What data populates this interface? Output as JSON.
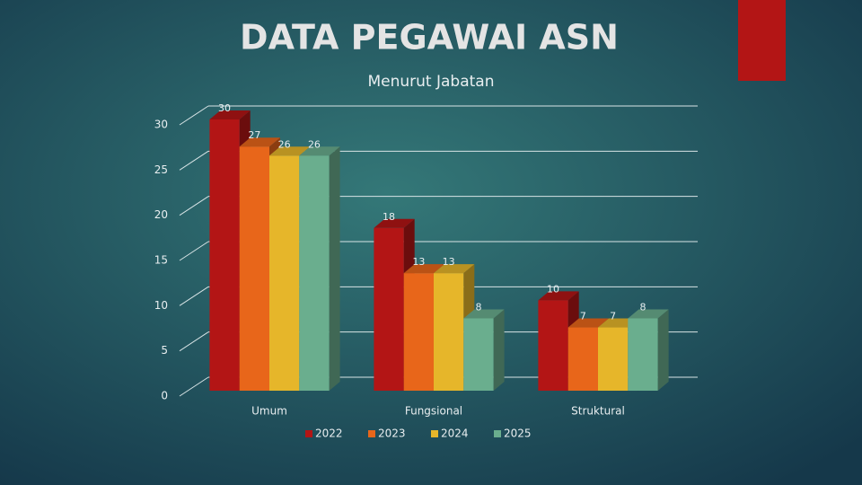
{
  "chart_data": {
    "type": "bar3d",
    "title": "DATA PEGAWAI ASN",
    "subtitle": "Menurut Jabatan",
    "categories": [
      "Umum",
      "Fungsional",
      "Struktural"
    ],
    "series": [
      {
        "name": "2022",
        "color": "#b31515",
        "values": [
          30,
          18,
          10
        ]
      },
      {
        "name": "2023",
        "color": "#e8661a",
        "values": [
          27,
          13,
          7
        ]
      },
      {
        "name": "2024",
        "color": "#e6b62a",
        "values": [
          26,
          13,
          7
        ]
      },
      {
        "name": "2025",
        "color": "#6aae8e",
        "values": [
          26,
          8,
          8
        ]
      }
    ],
    "ylim": [
      0,
      30
    ],
    "yticks": [
      0,
      5,
      10,
      15,
      20,
      25,
      30
    ],
    "grid": true,
    "legend": "bottom"
  }
}
